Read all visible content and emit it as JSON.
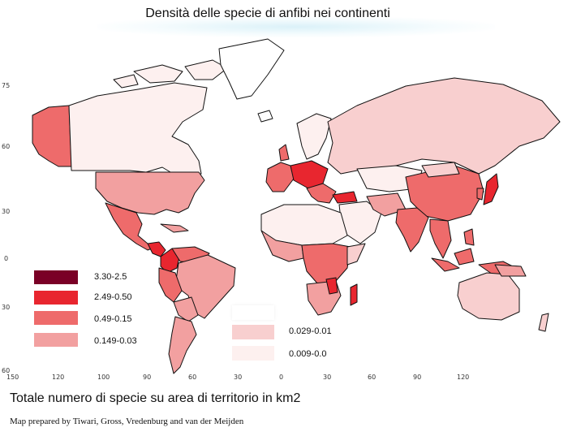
{
  "title": "Densità delle specie di anfibi nei continenti",
  "lat_ticks": [
    "75",
    "60",
    "30",
    "0",
    "30",
    "60"
  ],
  "lon_ticks": [
    "150",
    "120",
    "100",
    "90",
    "60",
    "30",
    "0",
    "30",
    "60",
    "90",
    "120"
  ],
  "legend_left": [
    {
      "label": "3.30-2.5",
      "color": "#7a0026"
    },
    {
      "label": "2.49-0.50",
      "color": "#e8262f"
    },
    {
      "label": "0.49-0.15",
      "color": "#ee6b6b"
    },
    {
      "label": "0.149-0.03",
      "color": "#f2a0a0"
    }
  ],
  "legend_right": [
    {
      "label": "",
      "color": "#ffffff"
    },
    {
      "label": "0.029-0.01",
      "color": "#f8cfcf"
    },
    {
      "label": "0.009-0.0",
      "color": "#fdf0ef"
    }
  ],
  "caption": "Totale numero di specie su area di territorio in km2",
  "credit": "Map prepared by Tiwari, Gross, Vredenburg and van der Meijden",
  "colors": {
    "c1": "#7a0026",
    "c2": "#e8262f",
    "c3": "#ee6b6b",
    "c4": "#f2a0a0",
    "c5": "#f8cfcf",
    "c6": "#fdf0ef",
    "border": "#111111"
  }
}
